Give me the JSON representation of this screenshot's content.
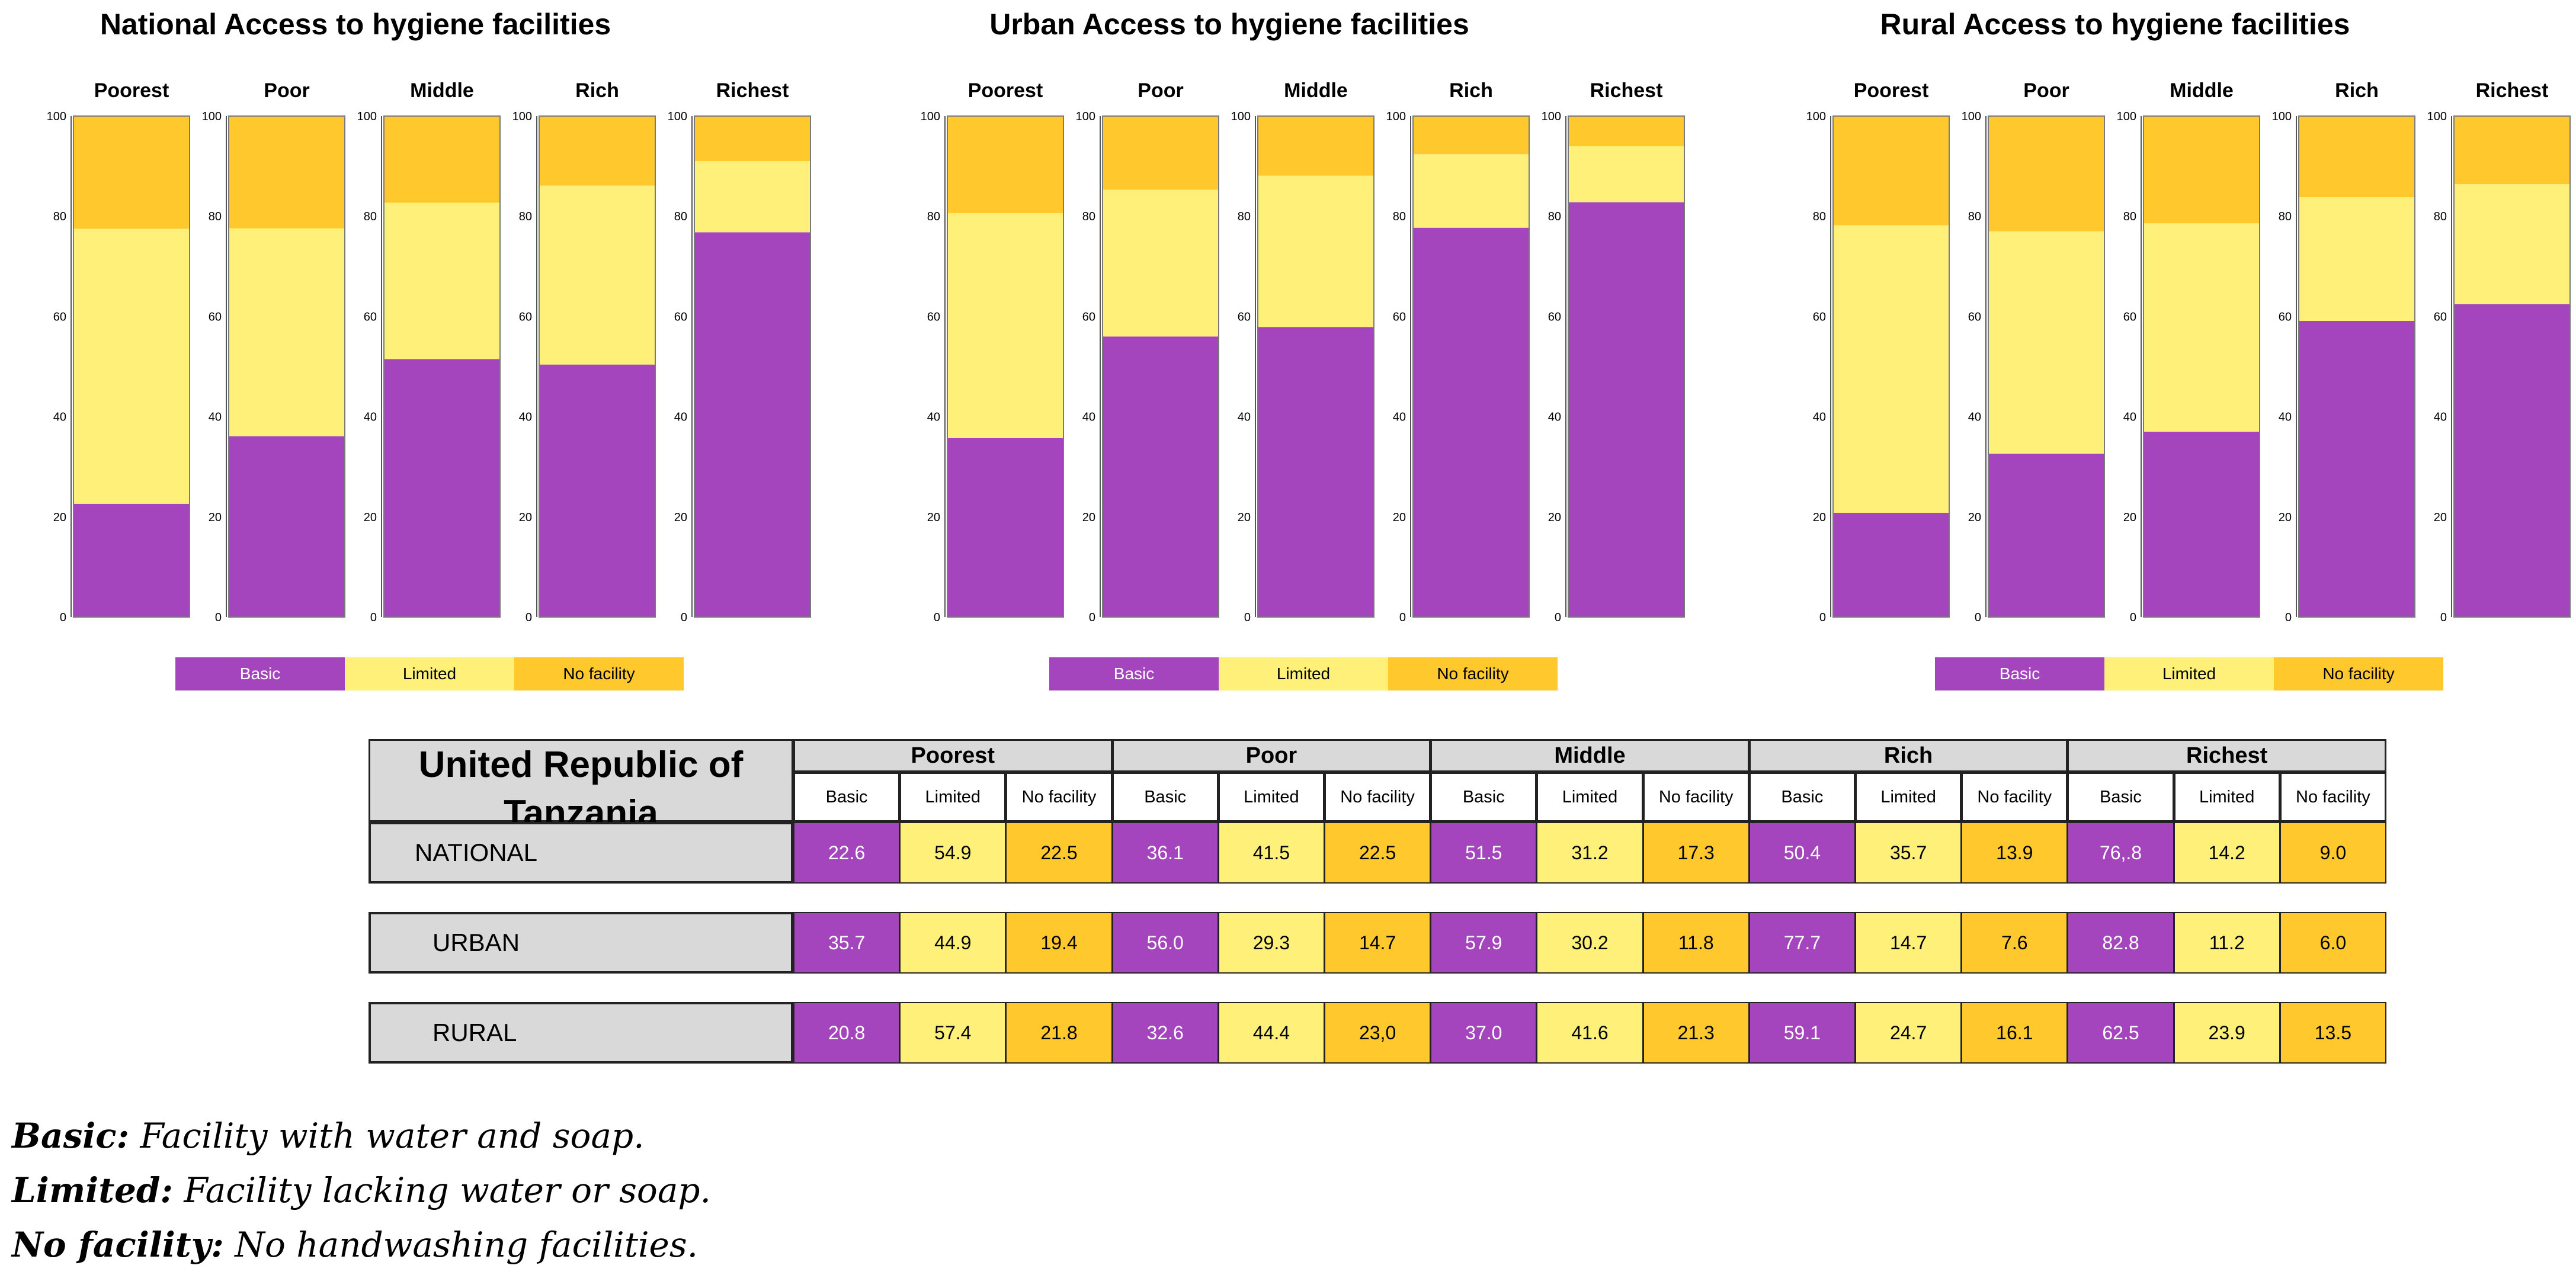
{
  "colors": {
    "basic": "#a545bd",
    "limited": "#fff07a",
    "no_facility": "#ffc82c",
    "header_gray": "#d9d9d9"
  },
  "legend": [
    "Basic",
    "Limited",
    "No facility"
  ],
  "y_ticks": [
    "0",
    "20",
    "40",
    "60",
    "80",
    "100"
  ],
  "chart_data": [
    {
      "type": "bar",
      "stacked": true,
      "title": "National Access to hygiene facilities",
      "categories": [
        "Poorest",
        "Poor",
        "Middle",
        "Rich",
        "Richest"
      ],
      "ylim": [
        0,
        100
      ],
      "series": [
        {
          "name": "Basic",
          "values": [
            22.6,
            36.1,
            51.5,
            50.4,
            76.8
          ]
        },
        {
          "name": "Limited",
          "values": [
            54.9,
            41.5,
            31.2,
            35.7,
            14.2
          ]
        },
        {
          "name": "No facility",
          "values": [
            22.5,
            22.5,
            17.3,
            13.9,
            9.0
          ]
        }
      ]
    },
    {
      "type": "bar",
      "stacked": true,
      "title": "Urban Access to hygiene facilities",
      "categories": [
        "Poorest",
        "Poor",
        "Middle",
        "Rich",
        "Richest"
      ],
      "ylim": [
        0,
        100
      ],
      "series": [
        {
          "name": "Basic",
          "values": [
            35.7,
            56.0,
            57.9,
            77.7,
            82.8
          ]
        },
        {
          "name": "Limited",
          "values": [
            44.9,
            29.3,
            30.2,
            14.7,
            11.2
          ]
        },
        {
          "name": "No facility",
          "values": [
            19.4,
            14.7,
            11.8,
            7.6,
            6.0
          ]
        }
      ]
    },
    {
      "type": "bar",
      "stacked": true,
      "title": "Rural Access to hygiene facilities",
      "categories": [
        "Poorest",
        "Poor",
        "Middle",
        "Rich",
        "Richest"
      ],
      "ylim": [
        0,
        100
      ],
      "series": [
        {
          "name": "Basic",
          "values": [
            20.8,
            32.6,
            37.0,
            59.1,
            62.5
          ]
        },
        {
          "name": "Limited",
          "values": [
            57.4,
            44.4,
            41.6,
            24.7,
            23.9
          ]
        },
        {
          "name": "No facility",
          "values": [
            21.8,
            23.0,
            21.3,
            16.1,
            13.5
          ]
        }
      ]
    }
  ],
  "table": {
    "title": "United Republic of Tanzania",
    "groups": [
      "Poorest",
      "Poor",
      "Middle",
      "Rich",
      "Richest"
    ],
    "subheaders": [
      "Basic",
      "Limited",
      "No facility"
    ],
    "rows": [
      {
        "label": "NATIONAL",
        "values": [
          "22.6",
          "54.9",
          "22.5",
          "36.1",
          "41.5",
          "22.5",
          "51.5",
          "31.2",
          "17.3",
          "50.4",
          "35.7",
          "13.9",
          "76,.8",
          "14.2",
          "9.0"
        ]
      },
      {
        "label": "URBAN",
        "values": [
          "35.7",
          "44.9",
          "19.4",
          "56.0",
          "29.3",
          "14.7",
          "57.9",
          "30.2",
          "11.8",
          "77.7",
          "14.7",
          "7.6",
          "82.8",
          "11.2",
          "6.0"
        ]
      },
      {
        "label": "RURAL",
        "values": [
          "20.8",
          "57.4",
          "21.8",
          "32.6",
          "44.4",
          "23,0",
          "37.0",
          "41.6",
          "21.3",
          "59.1",
          "24.7",
          "16.1",
          "62.5",
          "23.9",
          "13.5"
        ]
      }
    ]
  },
  "notes": [
    {
      "term": "Basic:",
      "definition": "Facility with water and soap."
    },
    {
      "term": "Limited:",
      "definition": "Facility lacking water or soap."
    },
    {
      "term": "No facility:",
      "definition": "No handwashing facilities."
    }
  ]
}
